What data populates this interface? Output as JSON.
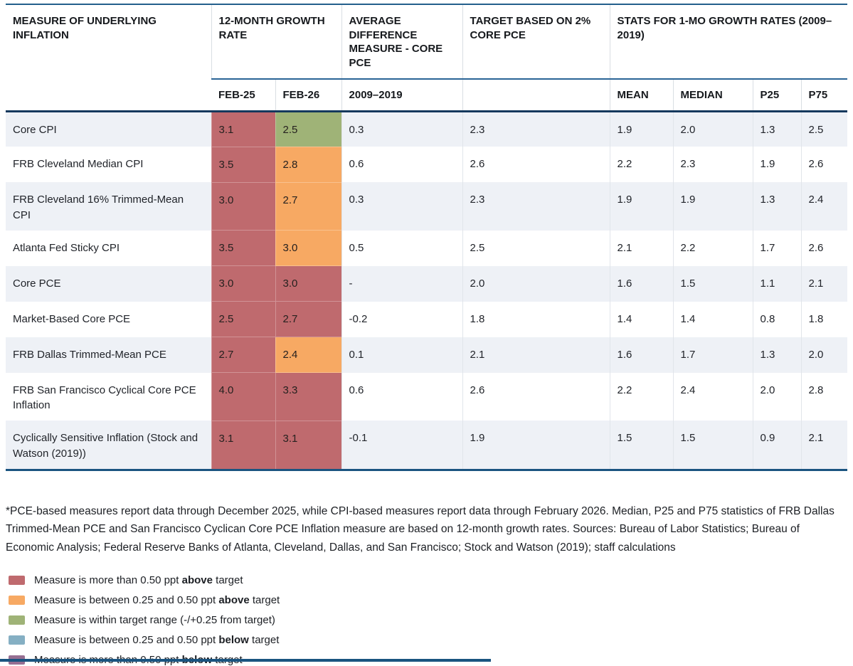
{
  "table": {
    "group_headers": {
      "measure": "MEASURE OF UNDERLYING INFLATION",
      "growth": "12-MONTH GROWTH RATE",
      "avg_diff": "AVERAGE DIFFERENCE MEASURE - CORE PCE",
      "target": "TARGET BASED ON 2% CORE PCE",
      "stats": "STATS FOR 1-MO GROWTH RATES (2009–2019)"
    },
    "sub_headers": [
      "FEB-25",
      "FEB-26",
      "2009–2019",
      "",
      "MEAN",
      "MEDIAN",
      "P25",
      "P75"
    ],
    "rows": [
      {
        "measure": "Core CPI",
        "feb25": "3.1",
        "feb25_status": "above-major",
        "feb26": "2.5",
        "feb26_status": "within",
        "avg_diff": "0.3",
        "target": "2.3",
        "mean": "1.9",
        "median": "2.0",
        "p25": "1.3",
        "p75": "2.5"
      },
      {
        "measure": "FRB Cleveland Median CPI",
        "feb25": "3.5",
        "feb25_status": "above-major",
        "feb26": "2.8",
        "feb26_status": "above-minor",
        "avg_diff": "0.6",
        "target": "2.6",
        "mean": "2.2",
        "median": "2.3",
        "p25": "1.9",
        "p75": "2.6"
      },
      {
        "measure": "FRB Cleveland 16% Trimmed-Mean CPI",
        "feb25": "3.0",
        "feb25_status": "above-major",
        "feb26": "2.7",
        "feb26_status": "above-minor",
        "avg_diff": "0.3",
        "target": "2.3",
        "mean": "1.9",
        "median": "1.9",
        "p25": "1.3",
        "p75": "2.4"
      },
      {
        "measure": "Atlanta Fed Sticky CPI",
        "feb25": "3.5",
        "feb25_status": "above-major",
        "feb26": "3.0",
        "feb26_status": "above-minor",
        "avg_diff": "0.5",
        "target": "2.5",
        "mean": "2.1",
        "median": "2.2",
        "p25": "1.7",
        "p75": "2.6"
      },
      {
        "measure": "Core PCE",
        "feb25": "3.0",
        "feb25_status": "above-major",
        "feb26": "3.0",
        "feb26_status": "above-major",
        "avg_diff": "-",
        "target": "2.0",
        "mean": "1.6",
        "median": "1.5",
        "p25": "1.1",
        "p75": "2.1"
      },
      {
        "measure": "Market-Based Core PCE",
        "feb25": "2.5",
        "feb25_status": "above-major",
        "feb26": "2.7",
        "feb26_status": "above-major",
        "avg_diff": "-0.2",
        "target": "1.8",
        "mean": "1.4",
        "median": "1.4",
        "p25": "0.8",
        "p75": "1.8"
      },
      {
        "measure": "FRB Dallas Trimmed-Mean PCE",
        "feb25": "2.7",
        "feb25_status": "above-major",
        "feb26": "2.4",
        "feb26_status": "above-minor",
        "avg_diff": "0.1",
        "target": "2.1",
        "mean": "1.6",
        "median": "1.7",
        "p25": "1.3",
        "p75": "2.0"
      },
      {
        "measure": "FRB San Francisco Cyclical Core PCE Inflation",
        "feb25": "4.0",
        "feb25_status": "above-major",
        "feb26": "3.3",
        "feb26_status": "above-major",
        "avg_diff": "0.6",
        "target": "2.6",
        "mean": "2.2",
        "median": "2.4",
        "p25": "2.0",
        "p75": "2.8"
      },
      {
        "measure": "Cyclically Sensitive Inflation (Stock and Watson (2019))",
        "feb25": "3.1",
        "feb25_status": "above-major",
        "feb26": "3.1",
        "feb26_status": "above-major",
        "avg_diff": "-0.1",
        "target": "1.9",
        "mean": "1.5",
        "median": "1.5",
        "p25": "0.9",
        "p75": "2.1"
      }
    ]
  },
  "footnote": "*PCE-based measures report data through December 2025, while CPI-based measures report data through February 2026. Median, P25 and P75 statistics of FRB Dallas Trimmed-Mean PCE and San Francisco Cyclican Core PCE Inflation measure are based on 12-month growth rates. Sources: Bureau of Labor Statistics; Bureau of Economic Analysis; Federal Reserve Banks of Atlanta, Cleveland, Dallas, and San Francisco; Stock and Watson (2019); staff calculations",
  "legend": [
    {
      "status": "above-major",
      "pre": "Measure is more than 0.50 ppt ",
      "bold": "above",
      "post": " target"
    },
    {
      "status": "above-minor",
      "pre": "Measure is between 0.25 and 0.50 ppt ",
      "bold": "above",
      "post": " target"
    },
    {
      "status": "within",
      "pre": "Measure is within target range (-/+0.25 from target)",
      "bold": "",
      "post": ""
    },
    {
      "status": "below-minor",
      "pre": "Measure is between 0.25 and 0.50 ppt ",
      "bold": "below",
      "post": " target"
    },
    {
      "status": "below-major",
      "pre": "Measure is more than 0.50 ppt ",
      "bold": "below",
      "post": ""
    }
  ],
  "legend_last_post": " target",
  "colors": {
    "status": {
      "above-major": "#bf6a6e",
      "above-minor": "#f7a963",
      "within": "#9fb377",
      "below-minor": "#85afc3",
      "below-major": "#966f92"
    },
    "accent_border": "#1a5480"
  }
}
